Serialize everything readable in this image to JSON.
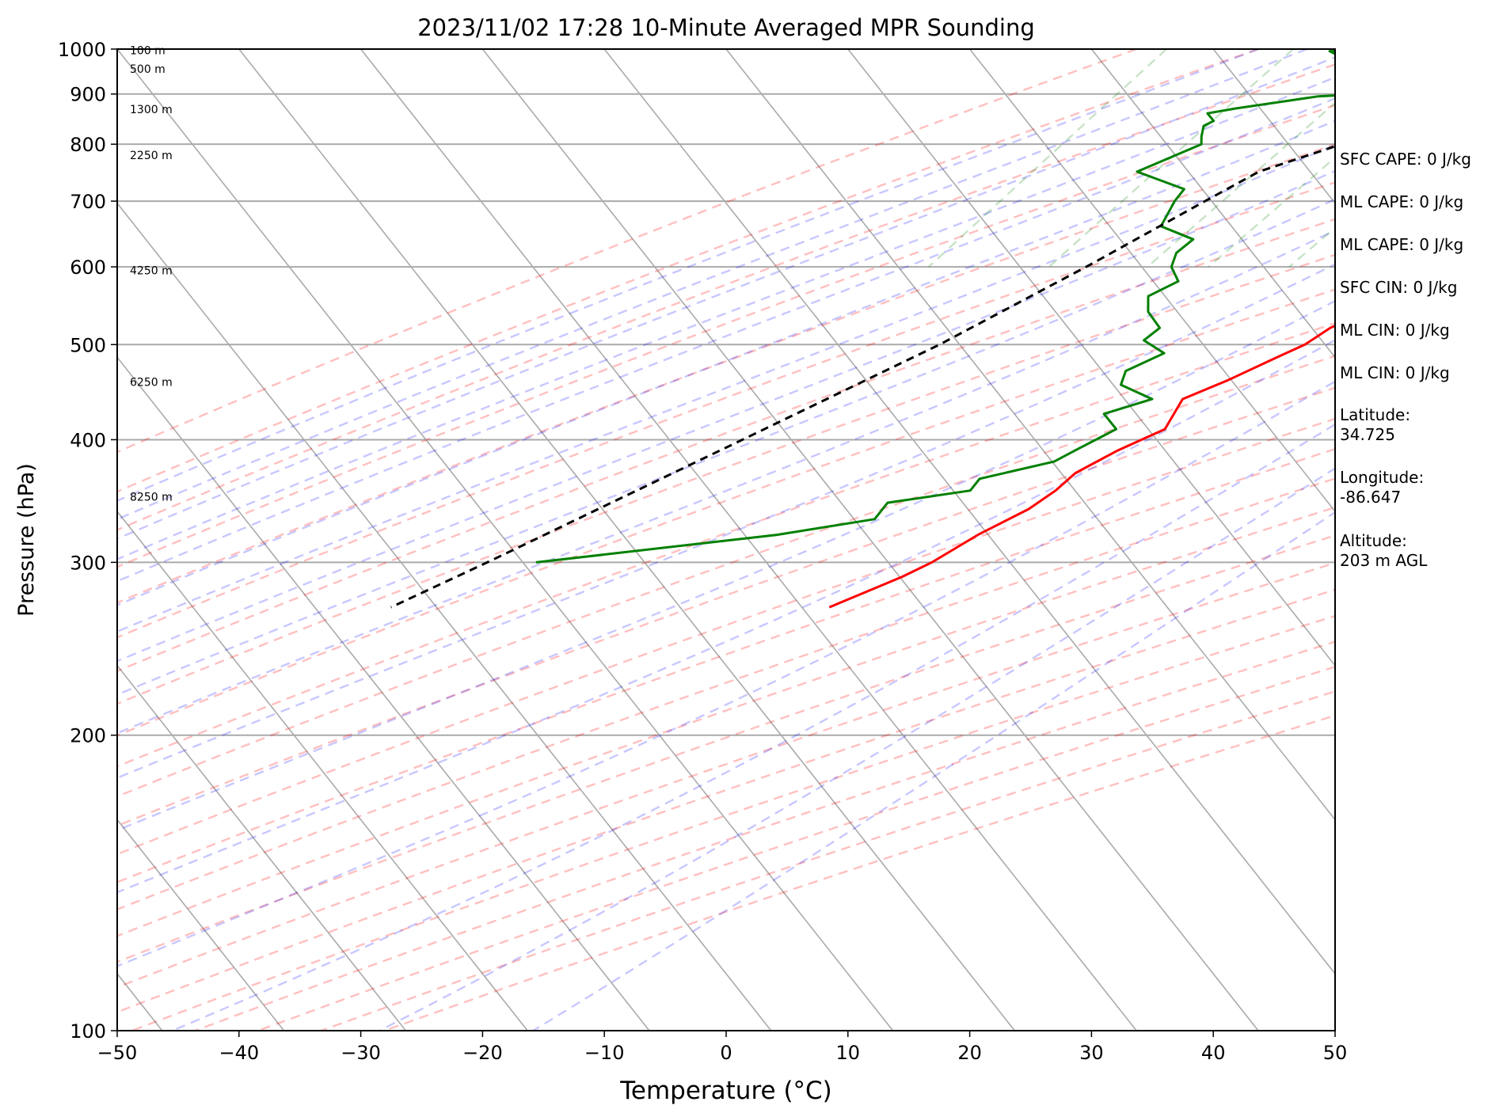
{
  "chart_data": {
    "type": "line",
    "subtype": "skew-t log-p",
    "title": "2023/11/02 17:28 10-Minute Averaged MPR Sounding",
    "xlabel": "Temperature (°C)",
    "ylabel": "Pressure (hPa)",
    "xlim": [
      -50,
      50
    ],
    "ylim": [
      1000,
      100
    ],
    "y_scale": "log",
    "grid": true,
    "x_ticks": [
      "−50",
      "−40",
      "−30",
      "−20",
      "−10",
      "0",
      "10",
      "20",
      "30",
      "40",
      "50"
    ],
    "y_ticks": [
      "100",
      "200",
      "300",
      "400",
      "500",
      "600",
      "700",
      "800",
      "900",
      "1000"
    ],
    "height_labels": [
      {
        "text": "8250 m",
        "p": 350
      },
      {
        "text": "6250 m",
        "p": 458
      },
      {
        "text": "4250 m",
        "p": 595
      },
      {
        "text": "2250 m",
        "p": 780
      },
      {
        "text": "1300 m",
        "p": 868
      },
      {
        "text": "500 m",
        "p": 955
      },
      {
        "text": "100 m",
        "p": 997
      }
    ],
    "series": [
      {
        "role": "temperature",
        "color": "#ff0000",
        "points": [
          {
            "p": 1000,
            "t": 8.0
          },
          {
            "p": 990,
            "t": -2.0
          },
          {
            "p": 980,
            "t": -7.0
          },
          {
            "p": 970,
            "t": -6.0
          },
          {
            "p": 960,
            "t": -2.5
          },
          {
            "p": 945,
            "t": 4.0
          },
          {
            "p": 930,
            "t": 10.0
          },
          {
            "p": 915,
            "t": 15.0
          },
          {
            "p": 900,
            "t": 19.0
          },
          {
            "p": 880,
            "t": 22.0
          },
          {
            "p": 860,
            "t": 23.5
          },
          {
            "p": 845,
            "t": 24.3
          },
          {
            "p": 830,
            "t": 24.2
          },
          {
            "p": 815,
            "t": 24.5
          },
          {
            "p": 800,
            "t": 24.0
          },
          {
            "p": 780,
            "t": 22.0
          },
          {
            "p": 750,
            "t": 20.0
          },
          {
            "p": 700,
            "t": 15.8
          },
          {
            "p": 660,
            "t": 12.5
          },
          {
            "p": 620,
            "t": 11.0
          },
          {
            "p": 580,
            "t": 9.0
          },
          {
            "p": 560,
            "t": 6.0
          },
          {
            "p": 540,
            "t": 6.0
          },
          {
            "p": 520,
            "t": 4.0
          },
          {
            "p": 500,
            "t": 3.0
          },
          {
            "p": 485,
            "t": 1.5
          },
          {
            "p": 460,
            "t": -1.0
          },
          {
            "p": 440,
            "t": -3.5
          },
          {
            "p": 410,
            "t": -3.0
          },
          {
            "p": 390,
            "t": -5.5
          },
          {
            "p": 370,
            "t": -7.5
          },
          {
            "p": 355,
            "t": -8.0
          },
          {
            "p": 340,
            "t": -9.0
          },
          {
            "p": 320,
            "t": -11.5
          },
          {
            "p": 300,
            "t": -13.5
          },
          {
            "p": 290,
            "t": -15.0
          },
          {
            "p": 270,
            "t": -19.0
          }
        ]
      },
      {
        "role": "dewpoint",
        "color": "#008000",
        "points": [
          {
            "p": 1000,
            "t": -12.0
          },
          {
            "p": 995,
            "t": -14.0
          },
          {
            "p": 985,
            "t": -13.0
          },
          {
            "p": 970,
            "t": -11.5
          },
          {
            "p": 955,
            "t": -11.0
          },
          {
            "p": 945,
            "t": -8.0
          },
          {
            "p": 930,
            "t": -5.0
          },
          {
            "p": 915,
            "t": -3.5
          },
          {
            "p": 905,
            "t": -5.0
          },
          {
            "p": 895,
            "t": -12.0
          },
          {
            "p": 870,
            "t": -18.0
          },
          {
            "p": 860,
            "t": -20.0
          },
          {
            "p": 845,
            "t": -19.0
          },
          {
            "p": 835,
            "t": -19.5
          },
          {
            "p": 815,
            "t": -19.0
          },
          {
            "p": 800,
            "t": -18.5
          },
          {
            "p": 750,
            "t": -22.0
          },
          {
            "p": 720,
            "t": -17.0
          },
          {
            "p": 700,
            "t": -17.0
          },
          {
            "p": 660,
            "t": -16.5
          },
          {
            "p": 640,
            "t": -13.0
          },
          {
            "p": 620,
            "t": -13.5
          },
          {
            "p": 600,
            "t": -13.0
          },
          {
            "p": 580,
            "t": -11.5
          },
          {
            "p": 560,
            "t": -13.0
          },
          {
            "p": 540,
            "t": -12.0
          },
          {
            "p": 520,
            "t": -10.0
          },
          {
            "p": 505,
            "t": -10.5
          },
          {
            "p": 490,
            "t": -8.0
          },
          {
            "p": 470,
            "t": -10.0
          },
          {
            "p": 455,
            "t": -9.5
          },
          {
            "p": 440,
            "t": -6.0
          },
          {
            "p": 425,
            "t": -9.0
          },
          {
            "p": 410,
            "t": -7.0
          },
          {
            "p": 390,
            "t": -9.0
          },
          {
            "p": 380,
            "t": -10.0
          },
          {
            "p": 365,
            "t": -15.0
          },
          {
            "p": 355,
            "t": -15.0
          },
          {
            "p": 345,
            "t": -21.0
          },
          {
            "p": 332,
            "t": -21.0
          },
          {
            "p": 320,
            "t": -28.0
          },
          {
            "p": 300,
            "t": -46.0
          }
        ]
      },
      {
        "role": "parcel",
        "color": "#000000",
        "style": "dashed",
        "points": [
          {
            "p": 1000,
            "t": 11.5
          },
          {
            "p": 900,
            "t": 2.5
          },
          {
            "p": 800,
            "t": -7.0
          },
          {
            "p": 750,
            "t": -12.0
          },
          {
            "p": 700,
            "t": -14.5
          },
          {
            "p": 600,
            "t": -20.0
          },
          {
            "p": 500,
            "t": -27.0
          },
          {
            "p": 400,
            "t": -37.0
          },
          {
            "p": 300,
            "t": -50.0
          },
          {
            "p": 270,
            "t": -55.0
          }
        ]
      }
    ]
  },
  "side_text": [
    "SFC CAPE: 0 J/kg",
    "ML CAPE: 0 J/kg",
    "ML CAPE: 0 J/kg",
    "SFC CIN: 0 J/kg",
    "ML CIN: 0 J/kg",
    "ML CIN: 0 J/kg",
    "Latitude:\n34.725",
    "Longitude:\n-86.647",
    "Altitude:\n203 m AGL"
  ]
}
